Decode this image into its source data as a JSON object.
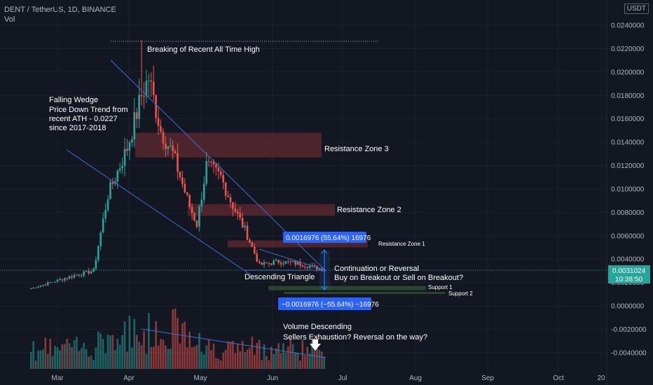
{
  "header": {
    "symbol": "DENT / TetherUS, 1D, BINANCE",
    "volume_label": "Vol",
    "currency": "USDT"
  },
  "colors": {
    "background": "#131722",
    "up": "#26a69a",
    "down": "#ef5350",
    "trendline": "#3d6bd9",
    "zone": "#7a3035",
    "measure": "#2962ff",
    "support": "#2f4a2f"
  },
  "chart_data": {
    "type": "candlestick",
    "x_ticks": [
      "Mar",
      "Apr",
      "May",
      "Jun",
      "Jul",
      "Aug",
      "Sep",
      "Oct",
      "20"
    ],
    "y_ticks": [
      "0.0240000",
      "0.0220000",
      "0.0200000",
      "0.0180000",
      "0.0160000",
      "0.0140000",
      "0.0120000",
      "0.0100000",
      "0.0080000",
      "0.0060000",
      "0.0040000",
      "0.0020000",
      "0.0000000",
      "-0.0020000",
      "-0.0040000"
    ],
    "ylim": [
      -0.0046,
      0.0255
    ],
    "last_price": "0.0031024",
    "countdown": "10:38:50",
    "ohlc_checkpoints": [
      {
        "date": "Feb 18",
        "close": 0.0015
      },
      {
        "date": "Mar 08",
        "close": 0.0026
      },
      {
        "date": "Mar 16",
        "close": 0.003
      },
      {
        "date": "Mar 22",
        "close": 0.0095
      },
      {
        "date": "Mar 30",
        "close": 0.0135
      },
      {
        "date": "Apr 05",
        "close": 0.018
      },
      {
        "date": "Apr 08",
        "close": 0.0195
      },
      {
        "date": "Apr 13",
        "close": 0.015
      },
      {
        "date": "Apr 18",
        "close": 0.013
      },
      {
        "date": "Apr 25",
        "close": 0.0085
      },
      {
        "date": "Apr 28",
        "close": 0.007
      },
      {
        "date": "May 02",
        "close": 0.012
      },
      {
        "date": "May 08",
        "close": 0.011
      },
      {
        "date": "May 12",
        "close": 0.009
      },
      {
        "date": "May 18",
        "close": 0.0065
      },
      {
        "date": "May 24",
        "close": 0.0035
      },
      {
        "date": "Jun 01",
        "close": 0.0038
      },
      {
        "date": "Jun 10",
        "close": 0.0036
      },
      {
        "date": "Jun 16",
        "close": 0.0033
      },
      {
        "date": "Jun 20",
        "close": 0.0031
      }
    ],
    "ath": 0.0227
  },
  "annotations": {
    "ath_label": "Breaking of Recent All Time High",
    "wedge_title": "Falling Wedge",
    "wedge_l1": "Price Down Trend from",
    "wedge_l2": "recent ATH - 0.0227",
    "wedge_l3": "since 2017-2018",
    "rz3": "Resistance Zone 3",
    "rz2": "Resistance Zone 2",
    "rz1": "Resistance Zone 1",
    "measure_up": "0.0016976 (55.64%) 16976",
    "measure_down": "−0.0016976 (−55.64%) −16976",
    "cont1": "Continuation or Reversal",
    "cont2": "Buy on Breakout or Sell on Breakout?",
    "desc_tri": "Descending Triangle",
    "support1": "Support 1",
    "support2": "Support 2",
    "vol1": "Volume Descending",
    "vol2": "Sellers Exhaustion? Reversal on the way?"
  }
}
